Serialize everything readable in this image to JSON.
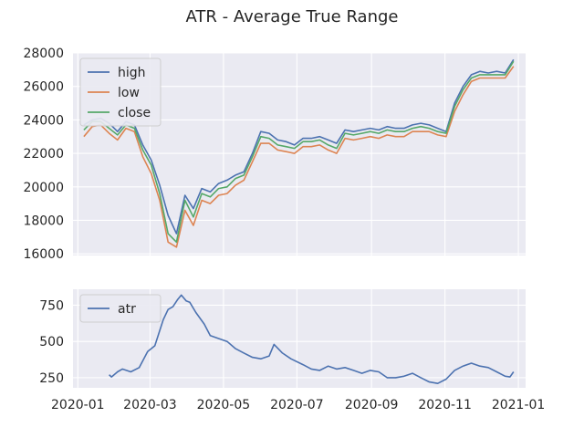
{
  "colors": {
    "background": "#ffffff",
    "plot_bg": "#eaeaf2",
    "grid": "#ffffff",
    "text": "#262626",
    "high": "#4c72b0",
    "low": "#dd8452",
    "close": "#55a868",
    "atr": "#4c72b0"
  },
  "chart_data": {
    "type": "line",
    "title": "ATR - Average True Range",
    "panels": [
      {
        "id": "price",
        "ylim": [
          15900,
          28000
        ],
        "yticks": [
          16000,
          18000,
          20000,
          22000,
          24000,
          26000,
          28000
        ],
        "ytick_labels": [
          "16000",
          "18000",
          "20000",
          "22000",
          "24000",
          "26000",
          "28000"
        ],
        "legend": [
          "high",
          "low",
          "close"
        ],
        "legend_position": "upper-left",
        "series": [
          {
            "name": "high",
            "points": [
              [
                "2020-01-06",
                23700
              ],
              [
                "2020-01-13",
                24000
              ],
              [
                "2020-01-20",
                24100
              ],
              [
                "2020-01-27",
                23800
              ],
              [
                "2020-02-03",
                23300
              ],
              [
                "2020-02-10",
                23900
              ],
              [
                "2020-02-17",
                23700
              ],
              [
                "2020-02-24",
                22500
              ],
              [
                "2020-03-02",
                21600
              ],
              [
                "2020-03-09",
                20100
              ],
              [
                "2020-03-16",
                18300
              ],
              [
                "2020-03-23",
                17200
              ],
              [
                "2020-03-30",
                19500
              ],
              [
                "2020-04-06",
                18700
              ],
              [
                "2020-04-13",
                19900
              ],
              [
                "2020-04-20",
                19700
              ],
              [
                "2020-04-27",
                20200
              ],
              [
                "2020-05-04",
                20400
              ],
              [
                "2020-05-11",
                20700
              ],
              [
                "2020-05-18",
                20900
              ],
              [
                "2020-05-25",
                22000
              ],
              [
                "2020-06-01",
                23300
              ],
              [
                "2020-06-08",
                23200
              ],
              [
                "2020-06-15",
                22800
              ],
              [
                "2020-06-22",
                22700
              ],
              [
                "2020-06-29",
                22500
              ],
              [
                "2020-07-06",
                22900
              ],
              [
                "2020-07-13",
                22900
              ],
              [
                "2020-07-20",
                23000
              ],
              [
                "2020-07-27",
                22800
              ],
              [
                "2020-08-03",
                22600
              ],
              [
                "2020-08-10",
                23400
              ],
              [
                "2020-08-17",
                23300
              ],
              [
                "2020-08-24",
                23400
              ],
              [
                "2020-08-31",
                23500
              ],
              [
                "2020-09-07",
                23400
              ],
              [
                "2020-09-14",
                23600
              ],
              [
                "2020-09-21",
                23500
              ],
              [
                "2020-09-28",
                23500
              ],
              [
                "2020-10-05",
                23700
              ],
              [
                "2020-10-12",
                23800
              ],
              [
                "2020-10-19",
                23700
              ],
              [
                "2020-10-26",
                23500
              ],
              [
                "2020-11-02",
                23300
              ],
              [
                "2020-11-09",
                25000
              ],
              [
                "2020-11-16",
                26000
              ],
              [
                "2020-11-23",
                26700
              ],
              [
                "2020-11-30",
                26900
              ],
              [
                "2020-12-07",
                26800
              ],
              [
                "2020-12-14",
                26900
              ],
              [
                "2020-12-21",
                26800
              ],
              [
                "2020-12-28",
                27600
              ]
            ]
          },
          {
            "name": "low",
            "points": [
              [
                "2020-01-06",
                23000
              ],
              [
                "2020-01-13",
                23600
              ],
              [
                "2020-01-20",
                23700
              ],
              [
                "2020-01-27",
                23200
              ],
              [
                "2020-02-03",
                22800
              ],
              [
                "2020-02-10",
                23500
              ],
              [
                "2020-02-17",
                23300
              ],
              [
                "2020-02-24",
                21800
              ],
              [
                "2020-03-02",
                20800
              ],
              [
                "2020-03-09",
                19200
              ],
              [
                "2020-03-16",
                16700
              ],
              [
                "2020-03-23",
                16400
              ],
              [
                "2020-03-30",
                18600
              ],
              [
                "2020-04-06",
                17700
              ],
              [
                "2020-04-13",
                19200
              ],
              [
                "2020-04-20",
                19000
              ],
              [
                "2020-04-27",
                19500
              ],
              [
                "2020-05-04",
                19600
              ],
              [
                "2020-05-11",
                20100
              ],
              [
                "2020-05-18",
                20400
              ],
              [
                "2020-05-25",
                21500
              ],
              [
                "2020-06-01",
                22600
              ],
              [
                "2020-06-08",
                22600
              ],
              [
                "2020-06-15",
                22200
              ],
              [
                "2020-06-22",
                22100
              ],
              [
                "2020-06-29",
                22000
              ],
              [
                "2020-07-06",
                22400
              ],
              [
                "2020-07-13",
                22400
              ],
              [
                "2020-07-20",
                22500
              ],
              [
                "2020-07-27",
                22200
              ],
              [
                "2020-08-03",
                22000
              ],
              [
                "2020-08-10",
                22900
              ],
              [
                "2020-08-17",
                22800
              ],
              [
                "2020-08-24",
                22900
              ],
              [
                "2020-08-31",
                23000
              ],
              [
                "2020-09-07",
                22900
              ],
              [
                "2020-09-14",
                23100
              ],
              [
                "2020-09-21",
                23000
              ],
              [
                "2020-09-28",
                23000
              ],
              [
                "2020-10-05",
                23300
              ],
              [
                "2020-10-12",
                23300
              ],
              [
                "2020-10-19",
                23300
              ],
              [
                "2020-10-26",
                23100
              ],
              [
                "2020-11-02",
                23000
              ],
              [
                "2020-11-09",
                24500
              ],
              [
                "2020-11-16",
                25500
              ],
              [
                "2020-11-23",
                26300
              ],
              [
                "2020-11-30",
                26500
              ],
              [
                "2020-12-07",
                26500
              ],
              [
                "2020-12-14",
                26500
              ],
              [
                "2020-12-21",
                26500
              ],
              [
                "2020-12-28",
                27200
              ]
            ]
          },
          {
            "name": "close",
            "points": [
              [
                "2020-01-06",
                23400
              ],
              [
                "2020-01-13",
                23900
              ],
              [
                "2020-01-20",
                23900
              ],
              [
                "2020-01-27",
                23500
              ],
              [
                "2020-02-03",
                23100
              ],
              [
                "2020-02-10",
                23700
              ],
              [
                "2020-02-17",
                23500
              ],
              [
                "2020-02-24",
                22200
              ],
              [
                "2020-03-02",
                21300
              ],
              [
                "2020-03-09",
                19600
              ],
              [
                "2020-03-16",
                17200
              ],
              [
                "2020-03-23",
                16700
              ],
              [
                "2020-03-30",
                19200
              ],
              [
                "2020-04-06",
                18200
              ],
              [
                "2020-04-13",
                19600
              ],
              [
                "2020-04-20",
                19400
              ],
              [
                "2020-04-27",
                19900
              ],
              [
                "2020-05-04",
                20000
              ],
              [
                "2020-05-11",
                20500
              ],
              [
                "2020-05-18",
                20700
              ],
              [
                "2020-05-25",
                21800
              ],
              [
                "2020-06-01",
                23000
              ],
              [
                "2020-06-08",
                22900
              ],
              [
                "2020-06-15",
                22500
              ],
              [
                "2020-06-22",
                22400
              ],
              [
                "2020-06-29",
                22300
              ],
              [
                "2020-07-06",
                22700
              ],
              [
                "2020-07-13",
                22700
              ],
              [
                "2020-07-20",
                22800
              ],
              [
                "2020-07-27",
                22500
              ],
              [
                "2020-08-03",
                22300
              ],
              [
                "2020-08-10",
                23200
              ],
              [
                "2020-08-17",
                23100
              ],
              [
                "2020-08-24",
                23200
              ],
              [
                "2020-08-31",
                23300
              ],
              [
                "2020-09-07",
                23200
              ],
              [
                "2020-09-14",
                23400
              ],
              [
                "2020-09-21",
                23300
              ],
              [
                "2020-09-28",
                23300
              ],
              [
                "2020-10-05",
                23500
              ],
              [
                "2020-10-12",
                23600
              ],
              [
                "2020-10-19",
                23500
              ],
              [
                "2020-10-26",
                23300
              ],
              [
                "2020-11-02",
                23200
              ],
              [
                "2020-11-09",
                24800
              ],
              [
                "2020-11-16",
                25800
              ],
              [
                "2020-11-23",
                26500
              ],
              [
                "2020-11-30",
                26700
              ],
              [
                "2020-12-07",
                26700
              ],
              [
                "2020-12-14",
                26700
              ],
              [
                "2020-12-21",
                26700
              ],
              [
                "2020-12-28",
                27500
              ]
            ]
          }
        ]
      },
      {
        "id": "atr",
        "ylim": [
          180,
          860
        ],
        "yticks": [
          250,
          500,
          750
        ],
        "ytick_labels": [
          "250",
          "500",
          "750"
        ],
        "legend": [
          "atr"
        ],
        "legend_position": "upper-left",
        "series": [
          {
            "name": "atr",
            "points": [
              [
                "2020-01-27",
                270
              ],
              [
                "2020-01-29",
                255
              ],
              [
                "2020-02-03",
                290
              ],
              [
                "2020-02-07",
                310
              ],
              [
                "2020-02-14",
                290
              ],
              [
                "2020-02-21",
                320
              ],
              [
                "2020-02-28",
                430
              ],
              [
                "2020-03-05",
                470
              ],
              [
                "2020-03-12",
                650
              ],
              [
                "2020-03-16",
                720
              ],
              [
                "2020-03-20",
                740
              ],
              [
                "2020-03-24",
                790
              ],
              [
                "2020-03-27",
                820
              ],
              [
                "2020-03-31",
                780
              ],
              [
                "2020-04-03",
                770
              ],
              [
                "2020-04-08",
                700
              ],
              [
                "2020-04-15",
                620
              ],
              [
                "2020-04-20",
                540
              ],
              [
                "2020-04-27",
                520
              ],
              [
                "2020-05-04",
                500
              ],
              [
                "2020-05-11",
                450
              ],
              [
                "2020-05-18",
                420
              ],
              [
                "2020-05-25",
                390
              ],
              [
                "2020-06-01",
                380
              ],
              [
                "2020-06-08",
                400
              ],
              [
                "2020-06-12",
                480
              ],
              [
                "2020-06-19",
                420
              ],
              [
                "2020-06-26",
                380
              ],
              [
                "2020-07-06",
                340
              ],
              [
                "2020-07-13",
                310
              ],
              [
                "2020-07-20",
                300
              ],
              [
                "2020-07-27",
                330
              ],
              [
                "2020-08-03",
                310
              ],
              [
                "2020-08-10",
                320
              ],
              [
                "2020-08-17",
                300
              ],
              [
                "2020-08-24",
                280
              ],
              [
                "2020-08-31",
                300
              ],
              [
                "2020-09-07",
                290
              ],
              [
                "2020-09-14",
                250
              ],
              [
                "2020-09-21",
                250
              ],
              [
                "2020-09-28",
                260
              ],
              [
                "2020-10-05",
                280
              ],
              [
                "2020-10-12",
                250
              ],
              [
                "2020-10-19",
                220
              ],
              [
                "2020-10-26",
                210
              ],
              [
                "2020-11-02",
                240
              ],
              [
                "2020-11-09",
                300
              ],
              [
                "2020-11-16",
                330
              ],
              [
                "2020-11-23",
                350
              ],
              [
                "2020-11-30",
                330
              ],
              [
                "2020-12-07",
                320
              ],
              [
                "2020-12-14",
                290
              ],
              [
                "2020-12-21",
                260
              ],
              [
                "2020-12-25",
                255
              ],
              [
                "2020-12-28",
                290
              ]
            ]
          }
        ]
      }
    ],
    "x_range": [
      "2019-12-28",
      "2021-01-07"
    ],
    "xticks": [
      "2020-01-01",
      "2020-03-01",
      "2020-05-01",
      "2020-07-01",
      "2020-09-01",
      "2020-11-01",
      "2021-01-01"
    ],
    "xtick_labels": [
      "2020-01",
      "2020-03",
      "2020-05",
      "2020-07",
      "2020-09",
      "2020-11",
      "2021-01"
    ],
    "grid": true
  }
}
